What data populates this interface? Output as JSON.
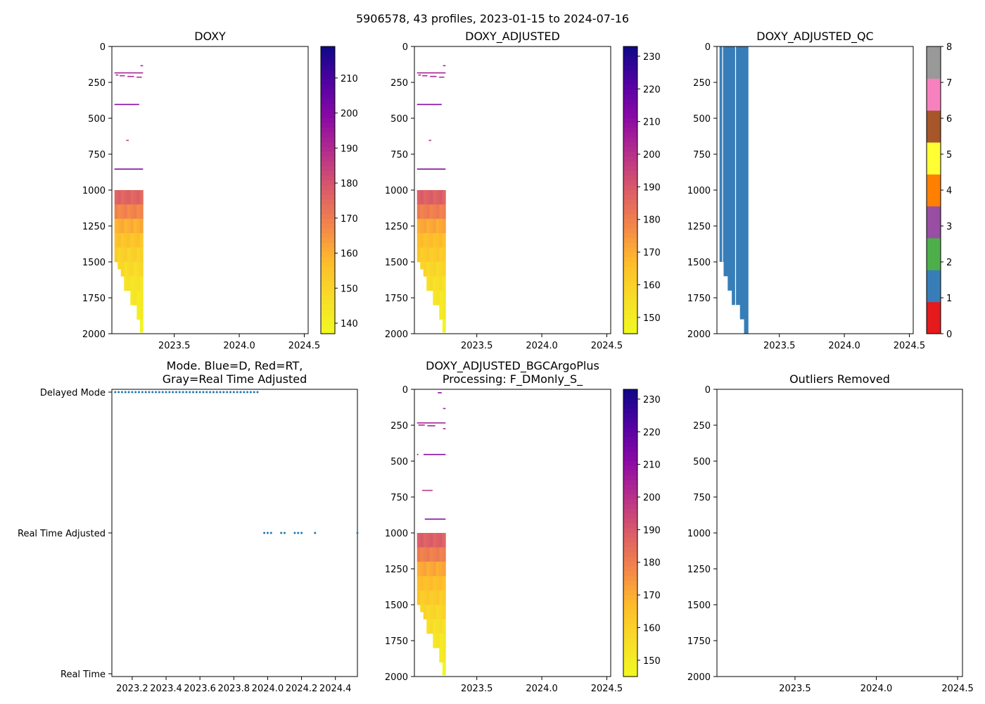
{
  "suptitle": "5906578, 43 profiles, 2023-01-15 to 2024-07-16",
  "colors": {
    "qc_blue": "#377eb8",
    "mode_dot": "#1f77b4",
    "frame": "#000000"
  },
  "chart_data": [
    {
      "id": "doxy",
      "type": "heatmap",
      "title": "DOXY",
      "xlim": [
        2023.02,
        2024.53
      ],
      "ylim": [
        2000,
        0
      ],
      "xticks": [
        "2023.5",
        "2024.0",
        "2024.5"
      ],
      "yticks": [
        "0",
        "250",
        "500",
        "750",
        "1000",
        "1250",
        "1500",
        "1750",
        "2000"
      ],
      "colormap": "plasma_r",
      "vmin": 137,
      "vmax": 219,
      "colorbar_ticks": [
        "140",
        "150",
        "160",
        "170",
        "180",
        "190",
        "200",
        "210"
      ],
      "color_by_depth": [
        [
          1050,
          176
        ],
        [
          1150,
          168
        ],
        [
          1250,
          160
        ],
        [
          1350,
          155
        ],
        [
          1450,
          151
        ],
        [
          1550,
          148
        ],
        [
          1650,
          145
        ],
        [
          1750,
          143
        ],
        [
          1850,
          141
        ],
        [
          1950,
          140
        ]
      ],
      "profile_max_depth": [
        1500,
        1550,
        1600,
        1700,
        1700,
        1800,
        1800,
        1900,
        1990
      ],
      "profile_time_start": 2023.04,
      "profile_time_end": 2023.26,
      "bulk_start_depth": 1000,
      "shallow_streaks": [
        {
          "t0": 2023.04,
          "t1": 2023.26,
          "depth": 180,
          "value": 192
        },
        {
          "t0": 2023.05,
          "t1": 2023.07,
          "depth": 195,
          "value": 190
        },
        {
          "t0": 2023.08,
          "t1": 2023.12,
          "depth": 200,
          "value": 190
        },
        {
          "t0": 2023.14,
          "t1": 2023.19,
          "depth": 205,
          "value": 191
        },
        {
          "t0": 2023.21,
          "t1": 2023.25,
          "depth": 210,
          "value": 190
        },
        {
          "t0": 2023.24,
          "t1": 2023.26,
          "depth": 130,
          "value": 190
        },
        {
          "t0": 2023.04,
          "t1": 2023.23,
          "depth": 400,
          "value": 200
        },
        {
          "t0": 2023.13,
          "t1": 2023.15,
          "depth": 650,
          "value": 185
        },
        {
          "t0": 2023.04,
          "t1": 2023.26,
          "depth": 850,
          "value": 200
        }
      ]
    },
    {
      "id": "doxy_adj",
      "type": "heatmap",
      "title": "DOXY_ADJUSTED",
      "xlim": [
        2023.02,
        2024.53
      ],
      "ylim": [
        2000,
        0
      ],
      "xticks": [
        "2023.5",
        "2024.0",
        "2024.5"
      ],
      "yticks": [
        "0",
        "250",
        "500",
        "750",
        "1000",
        "1250",
        "1500",
        "1750",
        "2000"
      ],
      "colormap": "plasma_r",
      "vmin": 145,
      "vmax": 233,
      "colorbar_ticks": [
        "150",
        "160",
        "170",
        "180",
        "190",
        "200",
        "210",
        "220",
        "230"
      ],
      "color_by_depth": [
        [
          1050,
          188
        ],
        [
          1150,
          180
        ],
        [
          1250,
          171
        ],
        [
          1350,
          166
        ],
        [
          1450,
          162
        ],
        [
          1550,
          158
        ],
        [
          1650,
          155
        ],
        [
          1750,
          152
        ],
        [
          1850,
          150
        ],
        [
          1950,
          148
        ]
      ],
      "profile_max_depth": [
        1500,
        1550,
        1600,
        1700,
        1700,
        1800,
        1800,
        1900,
        1990
      ],
      "profile_time_start": 2023.04,
      "profile_time_end": 2023.26,
      "bulk_start_depth": 1000,
      "shallow_streaks": [
        {
          "t0": 2023.04,
          "t1": 2023.26,
          "depth": 180,
          "value": 205
        },
        {
          "t0": 2023.05,
          "t1": 2023.07,
          "depth": 195,
          "value": 202
        },
        {
          "t0": 2023.08,
          "t1": 2023.12,
          "depth": 200,
          "value": 203
        },
        {
          "t0": 2023.14,
          "t1": 2023.19,
          "depth": 205,
          "value": 204
        },
        {
          "t0": 2023.21,
          "t1": 2023.25,
          "depth": 210,
          "value": 202
        },
        {
          "t0": 2023.24,
          "t1": 2023.26,
          "depth": 130,
          "value": 203
        },
        {
          "t0": 2023.04,
          "t1": 2023.23,
          "depth": 400,
          "value": 213
        },
        {
          "t0": 2023.13,
          "t1": 2023.15,
          "depth": 650,
          "value": 198
        },
        {
          "t0": 2023.04,
          "t1": 2023.26,
          "depth": 850,
          "value": 213
        }
      ]
    },
    {
      "id": "doxy_qc",
      "type": "heatmap",
      "title": "DOXY_ADJUSTED_QC",
      "xlim": [
        2023.02,
        2024.53
      ],
      "ylim": [
        2000,
        0
      ],
      "xticks": [
        "2023.5",
        "2024.0",
        "2024.5"
      ],
      "yticks": [
        "0",
        "250",
        "500",
        "750",
        "1000",
        "1250",
        "1500",
        "1750",
        "2000"
      ],
      "colorbar_categories": [
        {
          "value": 0,
          "color": "#e41a1c"
        },
        {
          "value": 1,
          "color": "#377eb8"
        },
        {
          "value": 2,
          "color": "#4daf4a"
        },
        {
          "value": 3,
          "color": "#984ea3"
        },
        {
          "value": 4,
          "color": "#ff7f00"
        },
        {
          "value": 5,
          "color": "#ffff33"
        },
        {
          "value": 6,
          "color": "#a65628"
        },
        {
          "value": 7,
          "color": "#f781bf"
        },
        {
          "value": 8,
          "color": "#999999"
        }
      ],
      "colorbar_ticks": [
        "0",
        "1",
        "2",
        "3",
        "4",
        "5",
        "6",
        "7",
        "8"
      ],
      "qc_value": 1,
      "profile_max_depth": [
        1500,
        1600,
        1700,
        1800,
        1800,
        1900,
        2000
      ],
      "profile_time_start": 2023.04,
      "profile_time_end": 2023.26,
      "gaps": [
        2023.06,
        2023.16
      ]
    },
    {
      "id": "mode",
      "type": "scatter",
      "title": "Mode. Blue=D, Red=RT,",
      "title_line2": "Gray=Real Time Adjusted",
      "xlim": [
        2023.08,
        2024.53
      ],
      "xticks": [
        "2023.2",
        "2023.4",
        "2023.6",
        "2023.8",
        "2024.0",
        "2024.2",
        "2024.4"
      ],
      "ytick_labels": [
        "Delayed Mode",
        "Real Time Adjusted",
        "Real Time"
      ],
      "series": [
        {
          "name": "Delayed Mode",
          "level": 2,
          "x": [
            2023.1,
            2023.12,
            2023.14,
            2023.16,
            2023.18,
            2023.2,
            2023.22,
            2023.24,
            2023.26,
            2023.28,
            2023.3,
            2023.32,
            2023.34,
            2023.36,
            2023.38,
            2023.4,
            2023.42,
            2023.44,
            2023.46,
            2023.48,
            2023.5,
            2023.52,
            2023.54,
            2023.56,
            2023.58,
            2023.6,
            2023.62,
            2023.64,
            2023.66,
            2023.68,
            2023.7,
            2023.72,
            2023.74,
            2023.76,
            2023.78,
            2023.8,
            2023.82,
            2023.84,
            2023.86,
            2023.88,
            2023.9,
            2023.92,
            2023.94
          ]
        },
        {
          "name": "Real Time Adjusted",
          "level": 1,
          "x": [
            2023.98,
            2024.0,
            2024.02,
            2024.08,
            2024.1,
            2024.16,
            2024.18,
            2024.2,
            2024.28,
            2024.53
          ]
        }
      ]
    },
    {
      "id": "bgc",
      "type": "heatmap",
      "title": "DOXY_ADJUSTED_BGCArgoPlus",
      "title_line2": "Processing: F_DMonly_S_",
      "xlim": [
        2023.02,
        2024.53
      ],
      "ylim": [
        2000,
        0
      ],
      "xticks": [
        "2023.5",
        "2024.0",
        "2024.5"
      ],
      "yticks": [
        "0",
        "250",
        "500",
        "750",
        "1000",
        "1250",
        "1500",
        "1750",
        "2000"
      ],
      "colormap": "plasma_r",
      "vmin": 145,
      "vmax": 233,
      "colorbar_ticks": [
        "150",
        "160",
        "170",
        "180",
        "190",
        "200",
        "210",
        "220",
        "230"
      ],
      "color_by_depth": [
        [
          1050,
          188
        ],
        [
          1150,
          180
        ],
        [
          1250,
          171
        ],
        [
          1350,
          166
        ],
        [
          1450,
          162
        ],
        [
          1550,
          158
        ],
        [
          1650,
          155
        ],
        [
          1750,
          152
        ],
        [
          1850,
          150
        ],
        [
          1950,
          148
        ]
      ],
      "profile_max_depth": [
        1500,
        1550,
        1600,
        1700,
        1700,
        1800,
        1800,
        1900,
        1990
      ],
      "profile_time_start": 2023.04,
      "profile_time_end": 2023.26,
      "bulk_start_depth": 1000,
      "shallow_streaks": [
        {
          "t0": 2023.2,
          "t1": 2023.23,
          "depth": 20,
          "value": 210
        },
        {
          "t0": 2023.04,
          "t1": 2023.26,
          "depth": 230,
          "value": 205
        },
        {
          "t0": 2023.05,
          "t1": 2023.1,
          "depth": 245,
          "value": 202
        },
        {
          "t0": 2023.12,
          "t1": 2023.18,
          "depth": 250,
          "value": 204
        },
        {
          "t0": 2023.24,
          "t1": 2023.26,
          "depth": 270,
          "value": 203
        },
        {
          "t0": 2023.24,
          "t1": 2023.26,
          "depth": 130,
          "value": 203
        },
        {
          "t0": 2023.04,
          "t1": 2023.05,
          "depth": 450,
          "value": 213
        },
        {
          "t0": 2023.09,
          "t1": 2023.26,
          "depth": 450,
          "value": 213
        },
        {
          "t0": 2023.08,
          "t1": 2023.11,
          "depth": 700,
          "value": 198
        },
        {
          "t0": 2023.11,
          "t1": 2023.16,
          "depth": 700,
          "value": 198
        },
        {
          "t0": 2023.1,
          "t1": 2023.26,
          "depth": 900,
          "value": 213
        }
      ]
    },
    {
      "id": "outliers",
      "type": "scatter",
      "title": "Outliers Removed",
      "xlim": [
        2023.02,
        2024.53
      ],
      "ylim": [
        2000,
        0
      ],
      "xticks": [
        "2023.5",
        "2024.0",
        "2024.5"
      ],
      "yticks": [
        "0",
        "250",
        "500",
        "750",
        "1000",
        "1250",
        "1500",
        "1750",
        "2000"
      ],
      "series": []
    }
  ]
}
